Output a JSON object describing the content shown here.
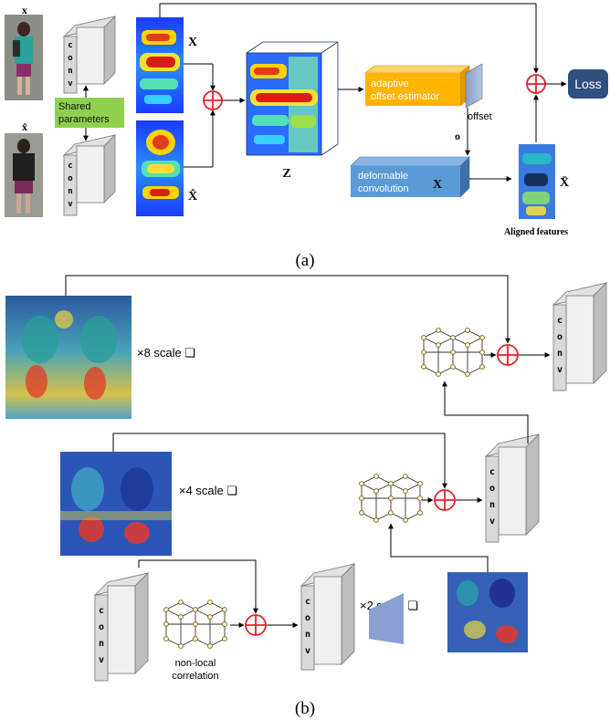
{
  "panel_a": {
    "label": "(a)",
    "input_x_label": "x",
    "input_xhat_label": "x̂",
    "conv_letters": [
      "c",
      "o",
      "n",
      "v"
    ],
    "shared_params_line1": "Shared",
    "shared_params_line2": "parameters",
    "feature_x_label": "X",
    "feature_xhat_label": "X̂",
    "z_label": "Z",
    "offset_estimator_line1": "adaptive",
    "offset_estimator_line2": "offset estimator",
    "offset_label": "offset",
    "o_label": "o",
    "deform_line1": "deformable",
    "deform_line2": "convolution",
    "deform_x_label": "X",
    "xbar_label": "X̄",
    "aligned_label": "Aligned features",
    "loss_label": "Loss",
    "colors": {
      "green_box": "#8fd14f",
      "orange_box": "#ffb400",
      "blue_box": "#5b9bd5",
      "loss_box": "#2f4f7f",
      "plus": "#e8202a"
    }
  },
  "panel_b": {
    "label": "(b)",
    "scale8_label": "×8 scale ❏",
    "scale4_label": "×4 scale ❏",
    "scale2_label": "×2 scale ❏",
    "nonlocal_line1": "non-local",
    "nonlocal_line2": "correlation",
    "conv_letters": [
      "c",
      "o",
      "n",
      "v"
    ]
  }
}
